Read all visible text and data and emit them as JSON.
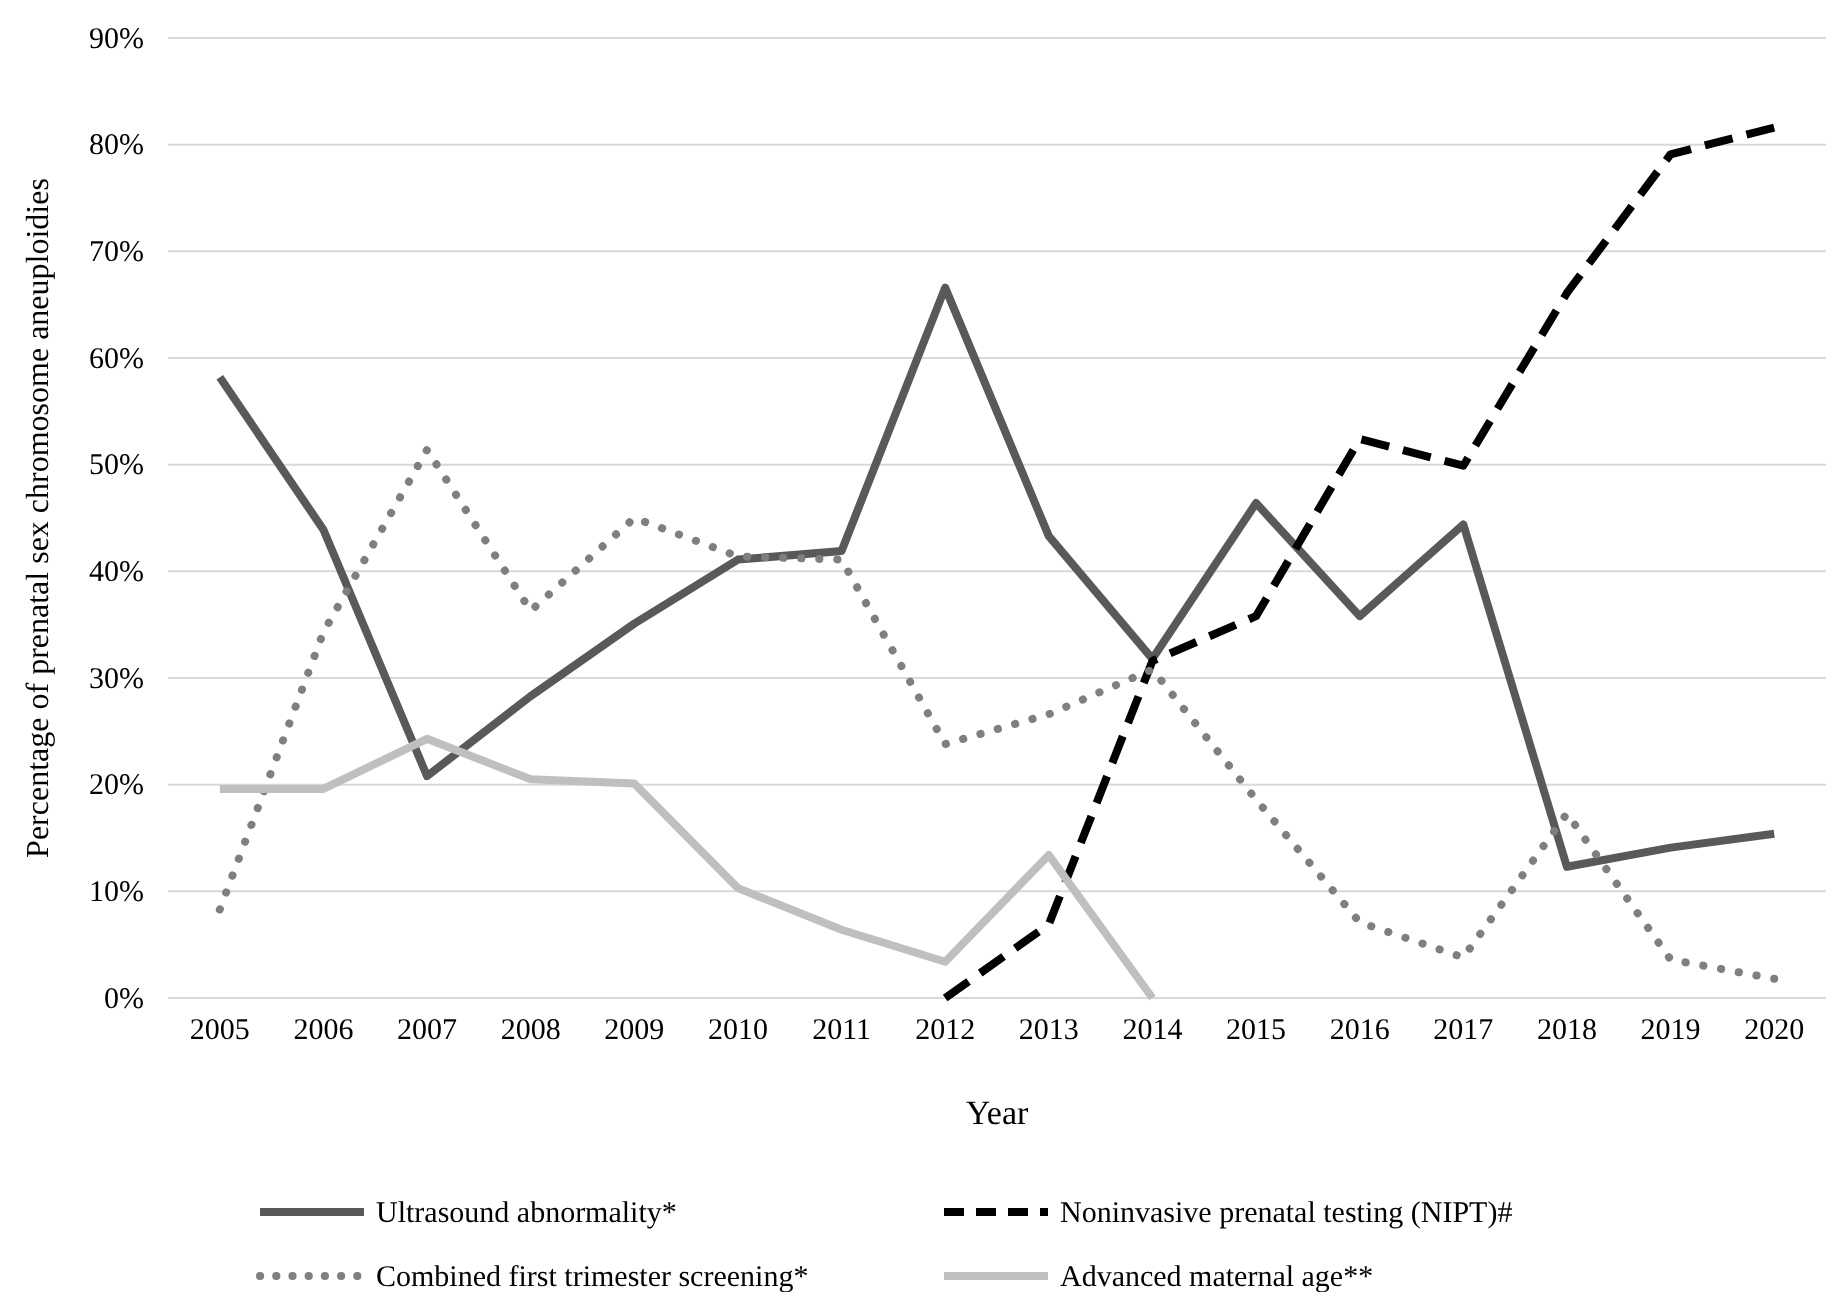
{
  "chart_data": {
    "type": "line",
    "xlabel": "Year",
    "ylabel": "Percentage of prenatal sex chromosome aneuploidies",
    "categories": [
      "2005",
      "2006",
      "2007",
      "2008",
      "2009",
      "2010",
      "2011",
      "2012",
      "2013",
      "2014",
      "2015",
      "2016",
      "2017",
      "2018",
      "2019",
      "2020"
    ],
    "ylim": [
      0,
      90
    ],
    "yticks": [
      {
        "value": 0,
        "label": "0%"
      },
      {
        "value": 10,
        "label": "10%"
      },
      {
        "value": 20,
        "label": "20%"
      },
      {
        "value": 30,
        "label": "30%"
      },
      {
        "value": 40,
        "label": "40%"
      },
      {
        "value": 50,
        "label": "50%"
      },
      {
        "value": 60,
        "label": "60%"
      },
      {
        "value": 70,
        "label": "70%"
      },
      {
        "value": 80,
        "label": "80%"
      },
      {
        "value": 90,
        "label": "90%"
      }
    ],
    "grid": "y",
    "legend": "bottom",
    "marker": "none",
    "series": [
      {
        "name": "Ultrasound abnormality*",
        "color": "#595959",
        "line_style": "solid",
        "values": [
          58.2,
          43.9,
          20.8,
          28.3,
          35.1,
          41.1,
          41.9,
          66.6,
          43.3,
          31.8,
          46.4,
          35.8,
          44.4,
          12.3,
          14.1,
          15.4
        ]
      },
      {
        "name": "Noninvasive prenatal testing (NIPT)#",
        "color": "#000000",
        "line_style": "dashed",
        "values": [
          null,
          null,
          null,
          null,
          null,
          null,
          null,
          0,
          6.9,
          31.6,
          35.8,
          52.4,
          49.9,
          66.1,
          79.1,
          81.6
        ]
      },
      {
        "name": "Combined first trimester screening*",
        "color": "#7f7f7f",
        "line_style": "dotted",
        "values": [
          8.3,
          34.3,
          51.4,
          36.3,
          45,
          41.4,
          41.1,
          23.8,
          26.6,
          30.8,
          18.6,
          7.1,
          3.8,
          17.3,
          3.6,
          1.8
        ]
      },
      {
        "name": "Advanced maternal age**",
        "color": "#bfbfbf",
        "line_style": "solid",
        "values": [
          19.6,
          19.6,
          24.3,
          20.5,
          20.1,
          10.3,
          6.4,
          3.4,
          13.4,
          0,
          null,
          null,
          null,
          null,
          null,
          null
        ]
      }
    ]
  }
}
